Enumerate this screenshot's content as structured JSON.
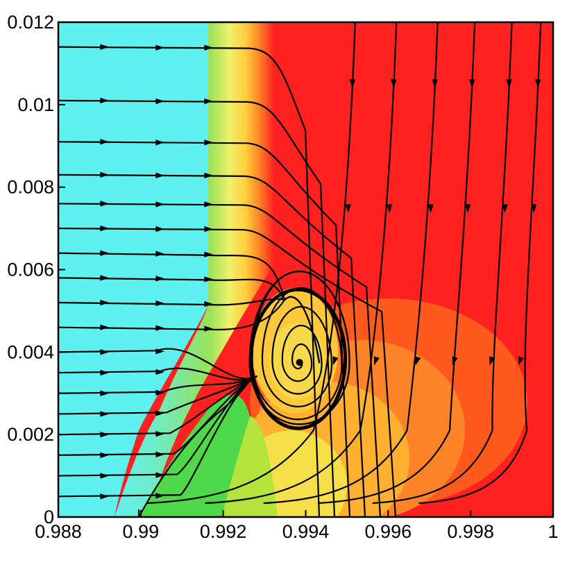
{
  "chart_data": {
    "type": "heatmap",
    "title": "",
    "xlabel": "",
    "ylabel": "",
    "xlim": [
      0.988,
      1.0
    ],
    "ylim": [
      0,
      0.012
    ],
    "x_ticks": [
      0.988,
      0.99,
      0.992,
      0.994,
      0.996,
      0.998,
      1.0
    ],
    "x_tick_labels": [
      "0.988",
      "0.99",
      "0.992",
      "0.994",
      "0.996",
      "0.998",
      "1"
    ],
    "y_ticks": [
      0,
      0.002,
      0.004,
      0.006,
      0.008,
      0.01,
      0.012
    ],
    "y_tick_labels": [
      "0",
      "0.002",
      "0.004",
      "0.006",
      "0.008",
      "0.01",
      "0.012"
    ],
    "grid": false,
    "legend": "none",
    "colormap": [
      "#5ff0f0",
      "#7eeaa0",
      "#4ed84a",
      "#b4e43c",
      "#f2f05a",
      "#ffd03c",
      "#ff9a2a",
      "#ff6a1a",
      "#ff2020"
    ],
    "field_description_regions": {
      "cold_region_color": "#5ff0f0",
      "hot_region_color": "#ff2020"
    },
    "vortex_center": [
      0.99385,
      0.00375
    ],
    "streamlines": {
      "color": "#000000",
      "horizontal_inflow_y_levels": [
        0.0114,
        0.0101,
        0.0091,
        0.0083,
        0.0076,
        0.007,
        0.0064,
        0.0058,
        0.0052,
        0.0046,
        0.004,
        0.0035,
        0.003,
        0.0025,
        0.002,
        0.0015,
        0.001,
        0.0005
      ],
      "vertical_downflow_x_levels": [
        0.9952,
        0.9962,
        0.9972,
        0.9981,
        0.999,
        0.9997
      ]
    }
  }
}
